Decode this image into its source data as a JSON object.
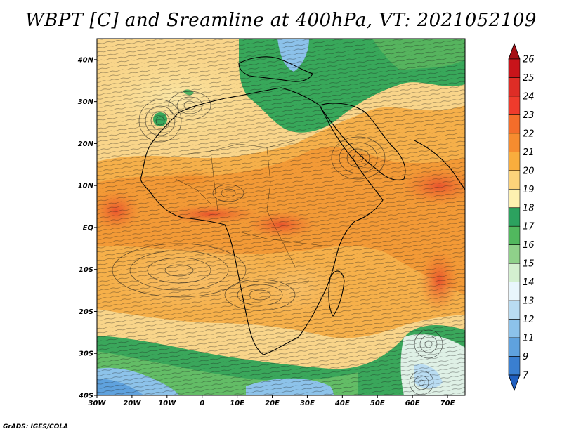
{
  "title": "WBPT [C] and Sreamline at 400hPa, VT: 2021052109",
  "credit": "GrADS: IGES/COLA",
  "map": {
    "lon_range": [
      -30,
      75
    ],
    "lat_range": [
      -40,
      45
    ],
    "lon_ticks": [
      {
        "value": -30,
        "label": "30W"
      },
      {
        "value": -20,
        "label": "20W"
      },
      {
        "value": -10,
        "label": "10W"
      },
      {
        "value": 0,
        "label": "0"
      },
      {
        "value": 10,
        "label": "10E"
      },
      {
        "value": 20,
        "label": "20E"
      },
      {
        "value": 30,
        "label": "30E"
      },
      {
        "value": 40,
        "label": "40E"
      },
      {
        "value": 50,
        "label": "50E"
      },
      {
        "value": 60,
        "label": "60E"
      },
      {
        "value": 70,
        "label": "70E"
      }
    ],
    "lat_ticks": [
      {
        "value": 40,
        "label": "40N"
      },
      {
        "value": 30,
        "label": "30N"
      },
      {
        "value": 20,
        "label": "20N"
      },
      {
        "value": 10,
        "label": "10N"
      },
      {
        "value": 0,
        "label": "EQ"
      },
      {
        "value": -10,
        "label": "10S"
      },
      {
        "value": -20,
        "label": "20S"
      },
      {
        "value": -30,
        "label": "30S"
      },
      {
        "value": -40,
        "label": "40S"
      }
    ]
  },
  "colorbar": {
    "labels": [
      "26",
      "25",
      "24",
      "23",
      "22",
      "21",
      "20",
      "19",
      "18",
      "17",
      "16",
      "15",
      "14",
      "13",
      "12",
      "11",
      "9",
      "7"
    ],
    "colors": [
      "#a50f15",
      "#c8141a",
      "#de2d26",
      "#ef3b2c",
      "#f46d2a",
      "#f68c2f",
      "#f9ad3d",
      "#fdd37a",
      "#fef1b0",
      "#2ca25f",
      "#51b85e",
      "#8fd18a",
      "#d4f0d0",
      "#e9f6fc",
      "#b9dcf2",
      "#8cc2ea",
      "#5fa2de",
      "#3a7fd0",
      "#1f5fc0"
    ]
  }
}
